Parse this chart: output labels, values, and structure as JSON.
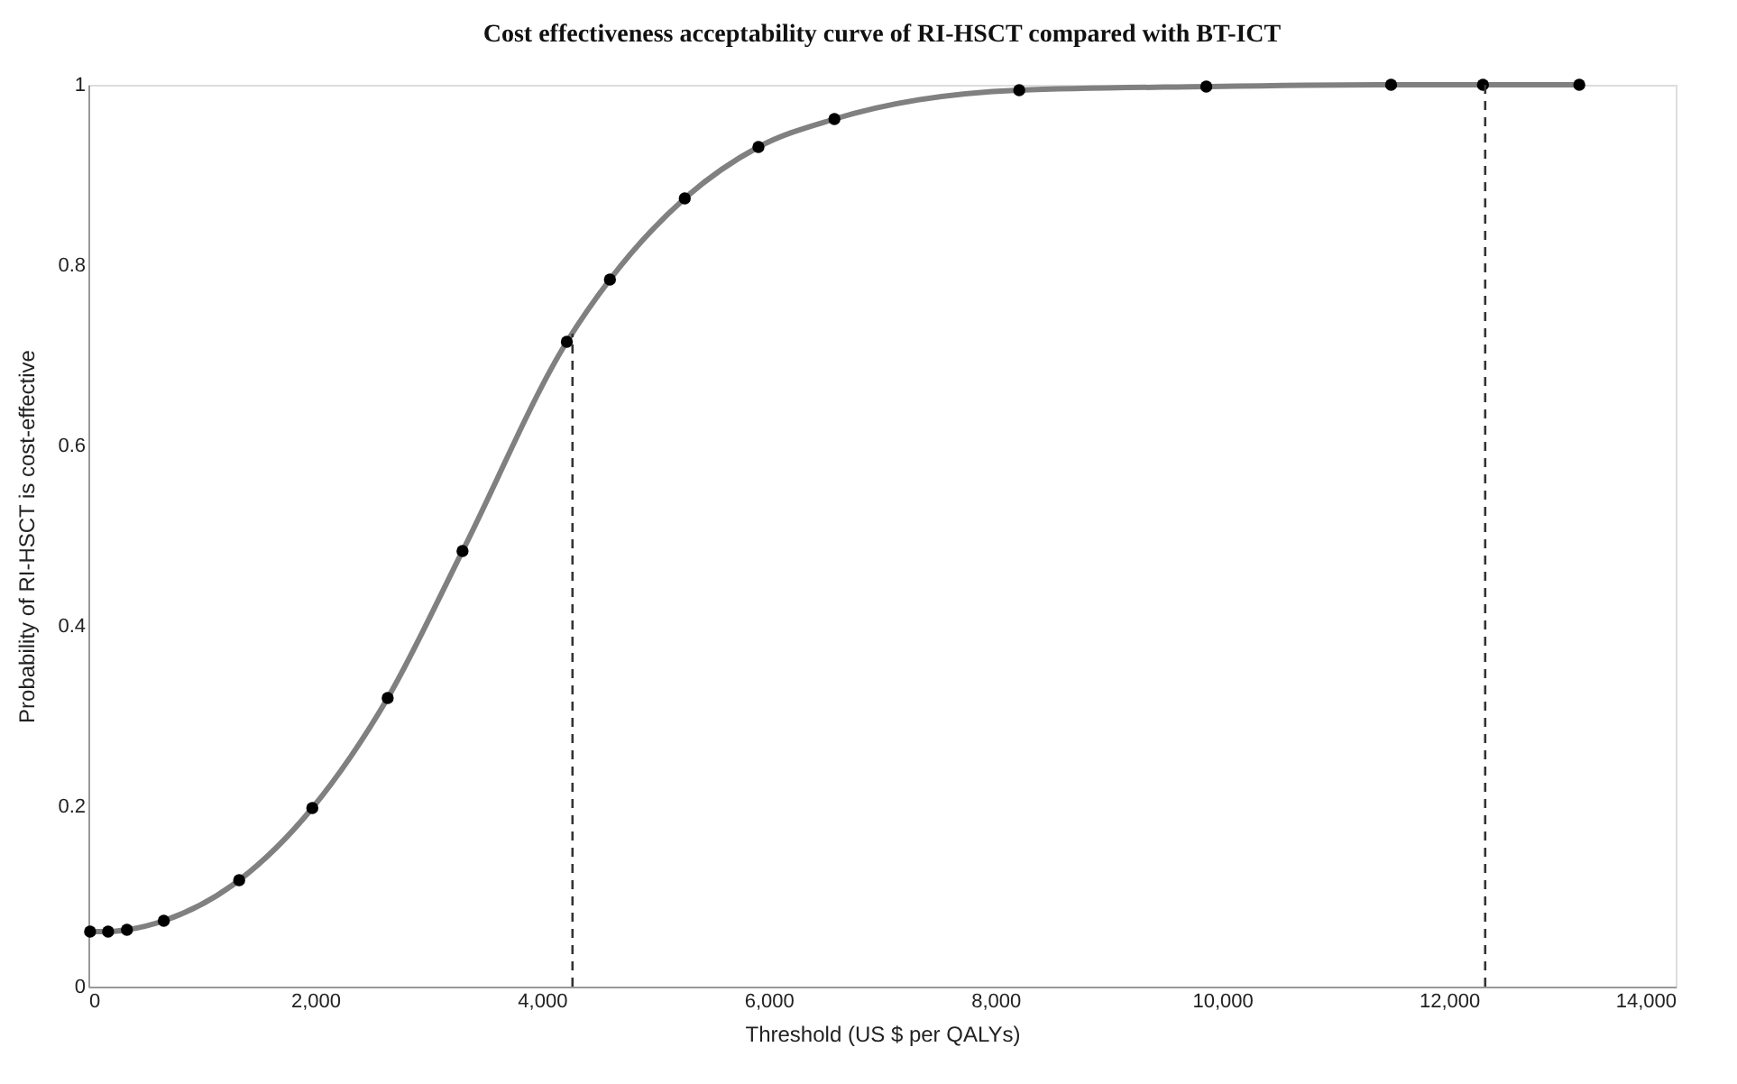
{
  "chart_data": {
    "type": "line",
    "title": "Cost effectiveness acceptability curve of RI-HSCT compared with BT-ICT",
    "xlabel": "Threshold  (US $ per QALYs)",
    "ylabel": "Probability of RI-HSCT  is cost-effective",
    "x": [
      15,
      174,
      340,
      665,
      1330,
      1975,
      2640,
      3300,
      4220,
      4600,
      5260,
      5910,
      6580,
      8210,
      9860,
      11490,
      12300,
      13150
    ],
    "series": [
      {
        "color": "#808080",
        "values": [
          0.061,
          0.061,
          0.063,
          0.073,
          0.118,
          0.198,
          0.32,
          0.483,
          0.715,
          0.784,
          0.874,
          0.931,
          0.962,
          0.994,
          0.998,
          1.0,
          1.0,
          1.0
        ]
      }
    ],
    "xlim": [
      0,
      14000
    ],
    "xticks": [
      0,
      {
        "value": 2000,
        "label": "2,000"
      },
      {
        "value": 4000,
        "label": "4,000"
      },
      {
        "value": 6000,
        "label": "6,000"
      },
      {
        "value": 8000,
        "label": "8,000"
      },
      {
        "value": 10000,
        "label": "10,000"
      },
      {
        "value": 12000,
        "label": "12,000"
      },
      {
        "value": 14000,
        "label": "14,000"
      }
    ],
    "ylim": [
      0,
      1
    ],
    "yticks": [
      0,
      0.2,
      0.4,
      0.6,
      0.8,
      1
    ],
    "ref_lines": [
      {
        "axis": "x",
        "value": 4270,
        "color": "#333333",
        "line_style": "dashed"
      },
      {
        "axis": "x",
        "value": 12320,
        "color": "#333333",
        "line_style": "dashed"
      }
    ],
    "marker": "circle",
    "line_style": "solid",
    "grid": false
  }
}
